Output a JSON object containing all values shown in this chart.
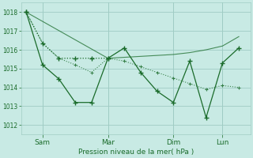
{
  "background_color": "#c8eae4",
  "line_color": "#1a6b2a",
  "grid_color": "#a0ccc4",
  "xlabel": "Pression niveau de la mer( hPa )",
  "ylim": [
    1011.5,
    1018.5
  ],
  "yticks": [
    1012,
    1013,
    1014,
    1015,
    1016,
    1017,
    1018
  ],
  "xtick_labels": [
    "Sam",
    "Mar",
    "Dim",
    "Lun"
  ],
  "xtick_positions": [
    1,
    5,
    9,
    12
  ],
  "xlim": [
    -0.3,
    13.7
  ],
  "line_steep_x": [
    0,
    1,
    2,
    3,
    4,
    5
  ],
  "line_steep_y": [
    1018.0,
    1016.35,
    1015.55,
    1015.55,
    1015.55,
    1015.55
  ],
  "line_rise_x": [
    0,
    5,
    6,
    7,
    8,
    9,
    10,
    11,
    12,
    13
  ],
  "line_rise_y": [
    1018.0,
    1015.55,
    1015.6,
    1015.65,
    1015.7,
    1015.75,
    1015.85,
    1016.0,
    1016.2,
    1016.7
  ],
  "line_wave_x": [
    0,
    1,
    2,
    3,
    4,
    5,
    6,
    7,
    8,
    9,
    10,
    11,
    12,
    13
  ],
  "line_wave_y": [
    1018.0,
    1015.2,
    1014.45,
    1013.2,
    1013.2,
    1015.55,
    1016.1,
    1014.8,
    1013.8,
    1013.2,
    1015.4,
    1012.4,
    1015.3,
    1016.1
  ],
  "line_desc_x": [
    0,
    1,
    2,
    3,
    4,
    5,
    6,
    7,
    8,
    9,
    10,
    11,
    12,
    13
  ],
  "line_desc_y": [
    1018.0,
    1016.35,
    1015.55,
    1015.2,
    1014.8,
    1015.55,
    1015.4,
    1015.1,
    1014.8,
    1014.5,
    1014.2,
    1013.9,
    1014.1,
    1014.0
  ]
}
